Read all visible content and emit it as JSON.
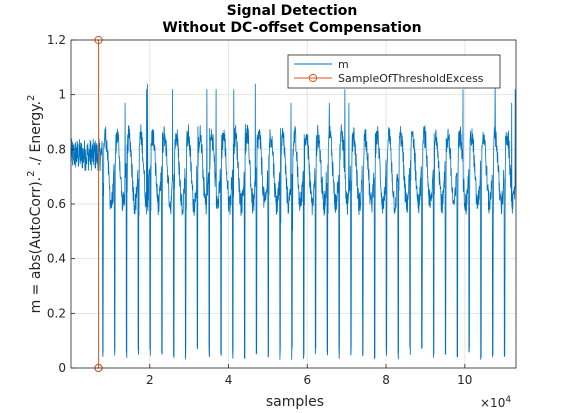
{
  "chart_data": {
    "type": "line",
    "title": [
      "Signal Detection",
      "Without DC-offset Compensation"
    ],
    "xlabel": "samples",
    "ylabel": "m = abs(AutoCorr).^{2} ./ Energy.^{2}",
    "xlim": [
      0,
      113000
    ],
    "ylim": [
      0,
      1.2
    ],
    "x_ticks": [
      20000,
      40000,
      60000,
      80000,
      100000
    ],
    "x_tick_labels": [
      "2",
      "4",
      "6",
      "8",
      "10"
    ],
    "x_exponent_label": "×10^4",
    "y_ticks": [
      0,
      0.2,
      0.4,
      0.6,
      0.8,
      1,
      1.2
    ],
    "y_tick_labels": [
      "0",
      "0.2",
      "0.4",
      "0.6",
      "0.8",
      "1",
      "1.2"
    ],
    "grid": true,
    "legend_position": "top-right",
    "colors": {
      "m": "#0072bd",
      "threshold": "#d95319"
    },
    "series": [
      {
        "name": "m",
        "style": "line",
        "description_points": {
          "initial_segment_x": [
            0,
            7500
          ],
          "initial_level": 0.78,
          "periodic_dip_start_x": 8000,
          "period_samples": 3000,
          "dip_level": 0.03,
          "upper_band": [
            0.6,
            0.85
          ],
          "spike_levels": [
            0.97,
            1.02,
            1.04
          ]
        }
      },
      {
        "name": "SampleOfThresholdExcess",
        "style": "line-marker",
        "x": [
          7000,
          7000,
          7000
        ],
        "y": [
          0,
          1.2,
          0
        ]
      }
    ]
  }
}
